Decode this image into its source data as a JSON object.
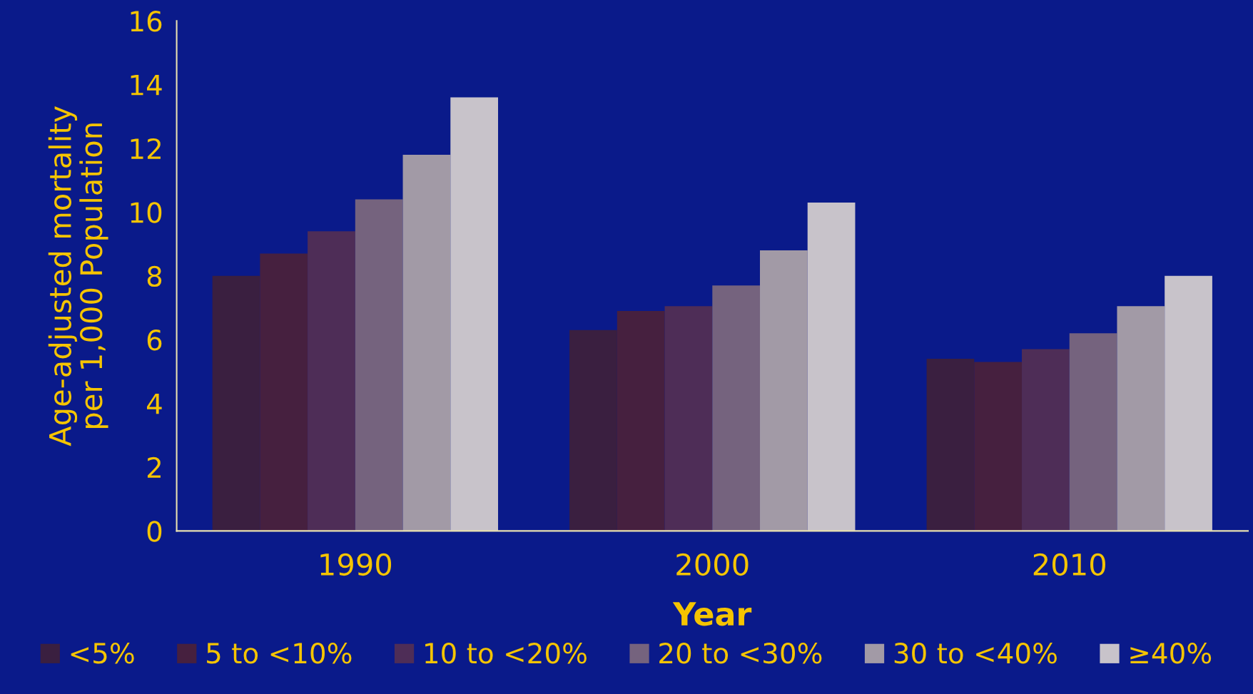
{
  "chart_data": {
    "type": "bar",
    "xlabel": "Year",
    "ylabel": "Age-adjusted mortality\nper 1,000 Population",
    "categories": [
      "1990",
      "2000",
      "2010"
    ],
    "series": [
      {
        "name": "<5%",
        "color": "#3a1f40",
        "values": [
          8.0,
          6.3,
          5.4
        ]
      },
      {
        "name": "5 to <10%",
        "color": "#46203f",
        "values": [
          8.7,
          6.9,
          5.3
        ]
      },
      {
        "name": "10 to <20%",
        "color": "#4e2d57",
        "values": [
          9.4,
          7.05,
          5.7
        ]
      },
      {
        "name": "20 to <30%",
        "color": "#75637e",
        "values": [
          10.4,
          7.7,
          6.2
        ]
      },
      {
        "name": "30 to <40%",
        "color": "#a29aa6",
        "values": [
          11.8,
          8.8,
          7.05
        ]
      },
      {
        "name": "≥40%",
        "color": "#c8c3ca",
        "values": [
          13.6,
          10.3,
          8.0
        ]
      }
    ],
    "ylim": [
      0,
      16
    ],
    "yticks": [
      0,
      2,
      4,
      6,
      8,
      10,
      12,
      14,
      16
    ],
    "grid": false,
    "legend": "bottom"
  }
}
